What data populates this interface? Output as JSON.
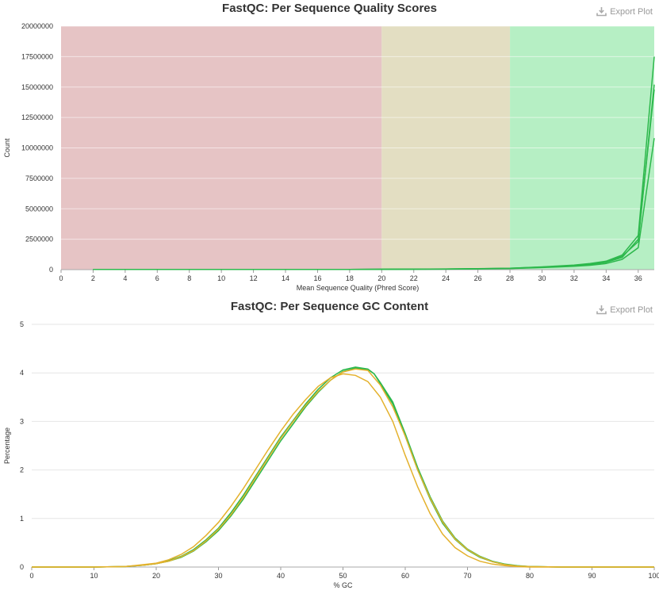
{
  "export_label": "Export Plot",
  "colors": {
    "fail_band": "#e6c4c5",
    "warn_band": "#e3dec2",
    "pass_band": "#b6efc4",
    "green_line": "#2db84c",
    "orange_line": "#e4b12c",
    "grid": "#e6e6e6"
  },
  "chart_data": [
    {
      "type": "line",
      "title": "FastQC: Per Sequence Quality Scores",
      "xlabel": "Mean Sequence Quality (Phred Score)",
      "ylabel": "Count",
      "xlim": [
        0,
        37
      ],
      "ylim": [
        0,
        20000000
      ],
      "xticks": [
        0,
        2,
        4,
        6,
        8,
        10,
        12,
        14,
        16,
        18,
        20,
        22,
        24,
        26,
        28,
        30,
        32,
        34,
        36
      ],
      "yticks": [
        0,
        2500000,
        5000000,
        7500000,
        10000000,
        12500000,
        15000000,
        17500000,
        20000000
      ],
      "bands": [
        {
          "from": 0,
          "to": 20,
          "color": "#e6c4c5"
        },
        {
          "from": 20,
          "to": 28,
          "color": "#e3dec2"
        },
        {
          "from": 28,
          "to": 37,
          "color": "#b6efc4"
        }
      ],
      "legend": "none",
      "series": [
        {
          "x": [
            2,
            4,
            6,
            8,
            10,
            12,
            14,
            16,
            18,
            20,
            22,
            24,
            26,
            28,
            29,
            30,
            31,
            32,
            33,
            34,
            35,
            36,
            37
          ],
          "values": [
            20000,
            20000,
            20000,
            20000,
            20000,
            20000,
            20000,
            20000,
            20000,
            30000,
            40000,
            50000,
            70000,
            100000,
            150000,
            200000,
            260000,
            320000,
            420000,
            600000,
            1000000,
            2500000,
            14800000
          ]
        },
        {
          "x": [
            2,
            4,
            6,
            8,
            10,
            12,
            14,
            16,
            18,
            20,
            22,
            24,
            26,
            28,
            29,
            30,
            31,
            32,
            33,
            34,
            35,
            36,
            37
          ],
          "values": [
            20000,
            20000,
            20000,
            20000,
            20000,
            20000,
            20000,
            20000,
            20000,
            30000,
            40000,
            60000,
            80000,
            120000,
            170000,
            230000,
            300000,
            380000,
            500000,
            700000,
            1200000,
            2800000,
            17500000
          ]
        },
        {
          "x": [
            2,
            4,
            6,
            8,
            10,
            12,
            14,
            16,
            18,
            20,
            22,
            24,
            26,
            28,
            29,
            30,
            31,
            32,
            33,
            34,
            35,
            36,
            37
          ],
          "values": [
            20000,
            20000,
            20000,
            20000,
            20000,
            20000,
            20000,
            20000,
            20000,
            30000,
            40000,
            50000,
            70000,
            110000,
            160000,
            210000,
            280000,
            350000,
            460000,
            650000,
            1100000,
            2300000,
            15200000
          ]
        },
        {
          "x": [
            2,
            4,
            6,
            8,
            10,
            12,
            14,
            16,
            18,
            20,
            22,
            24,
            26,
            28,
            29,
            30,
            31,
            32,
            33,
            34,
            35,
            36,
            37
          ],
          "values": [
            20000,
            20000,
            20000,
            20000,
            20000,
            20000,
            20000,
            20000,
            20000,
            20000,
            30000,
            40000,
            60000,
            90000,
            130000,
            170000,
            220000,
            280000,
            360000,
            500000,
            850000,
            1800000,
            10800000
          ]
        }
      ]
    },
    {
      "type": "line",
      "title": "FastQC: Per Sequence GC Content",
      "xlabel": "% GC",
      "ylabel": "Percentage",
      "xlim": [
        0,
        100
      ],
      "ylim": [
        0,
        5
      ],
      "xticks": [
        0,
        10,
        20,
        30,
        40,
        50,
        60,
        70,
        80,
        90,
        100
      ],
      "yticks": [
        0,
        1,
        2,
        3,
        4,
        5
      ],
      "legend": "none",
      "series": [
        {
          "color": "green",
          "x": [
            0,
            10,
            15,
            18,
            20,
            22,
            24,
            26,
            28,
            30,
            32,
            34,
            36,
            38,
            40,
            42,
            44,
            46,
            48,
            50,
            52,
            54,
            55,
            56,
            58,
            60,
            62,
            64,
            66,
            68,
            70,
            72,
            74,
            76,
            78,
            80,
            85,
            90,
            100
          ],
          "values": [
            0,
            0,
            0.01,
            0.04,
            0.07,
            0.12,
            0.2,
            0.33,
            0.52,
            0.75,
            1.05,
            1.4,
            1.8,
            2.2,
            2.6,
            2.95,
            3.3,
            3.6,
            3.85,
            4.03,
            4.1,
            4.07,
            3.98,
            3.8,
            3.4,
            2.75,
            2.05,
            1.45,
            0.95,
            0.6,
            0.37,
            0.22,
            0.12,
            0.06,
            0.03,
            0.01,
            0,
            0,
            0
          ]
        },
        {
          "color": "green",
          "x": [
            0,
            10,
            15,
            18,
            20,
            22,
            24,
            26,
            28,
            30,
            32,
            34,
            36,
            38,
            40,
            42,
            44,
            46,
            48,
            50,
            52,
            54,
            55,
            56,
            58,
            60,
            62,
            64,
            66,
            68,
            70,
            72,
            74,
            76,
            78,
            80,
            85,
            90,
            100
          ],
          "values": [
            0,
            0,
            0.01,
            0.04,
            0.07,
            0.13,
            0.22,
            0.36,
            0.56,
            0.8,
            1.12,
            1.48,
            1.88,
            2.28,
            2.68,
            3.02,
            3.36,
            3.66,
            3.9,
            4.06,
            4.12,
            4.08,
            3.98,
            3.78,
            3.36,
            2.7,
            2.0,
            1.4,
            0.9,
            0.57,
            0.35,
            0.2,
            0.11,
            0.05,
            0.02,
            0.01,
            0,
            0,
            0
          ]
        },
        {
          "color": "orange",
          "x": [
            0,
            10,
            15,
            18,
            20,
            22,
            24,
            26,
            28,
            30,
            32,
            34,
            36,
            38,
            40,
            42,
            44,
            46,
            48,
            50,
            52,
            54,
            56,
            58,
            60,
            62,
            64,
            66,
            68,
            70,
            72,
            74,
            76,
            78,
            80,
            85,
            90,
            100
          ],
          "values": [
            0,
            0,
            0.01,
            0.05,
            0.08,
            0.15,
            0.26,
            0.42,
            0.65,
            0.92,
            1.25,
            1.62,
            2.02,
            2.42,
            2.8,
            3.15,
            3.45,
            3.72,
            3.9,
            3.98,
            3.95,
            3.82,
            3.5,
            3.0,
            2.3,
            1.65,
            1.1,
            0.68,
            0.4,
            0.23,
            0.12,
            0.06,
            0.03,
            0.01,
            0,
            0,
            0,
            0
          ]
        },
        {
          "color": "orange",
          "x": [
            0,
            10,
            15,
            18,
            20,
            22,
            24,
            26,
            28,
            30,
            32,
            34,
            36,
            38,
            40,
            42,
            44,
            46,
            48,
            50,
            52,
            54,
            56,
            58,
            60,
            62,
            64,
            66,
            68,
            70,
            72,
            74,
            76,
            78,
            80,
            85,
            90,
            100
          ],
          "values": [
            0,
            0,
            0.01,
            0.04,
            0.07,
            0.12,
            0.21,
            0.34,
            0.54,
            0.78,
            1.08,
            1.44,
            1.85,
            2.25,
            2.65,
            3.0,
            3.33,
            3.62,
            3.85,
            4.02,
            4.08,
            4.05,
            3.75,
            3.3,
            2.7,
            2.0,
            1.42,
            0.93,
            0.58,
            0.36,
            0.21,
            0.11,
            0.05,
            0.02,
            0.01,
            0,
            0,
            0
          ]
        }
      ]
    }
  ]
}
